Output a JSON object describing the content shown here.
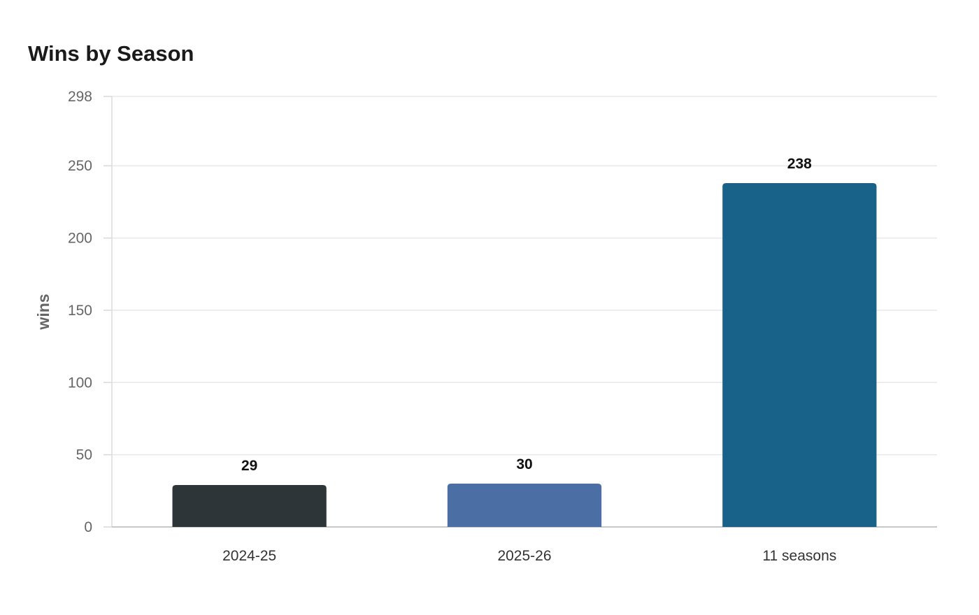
{
  "chart_data": {
    "type": "bar",
    "title": "Wins by Season",
    "xlabel": "",
    "ylabel": "wins",
    "categories": [
      "2024-25",
      "2025-26",
      "11 seasons"
    ],
    "values": [
      29,
      30,
      238
    ],
    "value_labels": [
      "29",
      "30",
      "238"
    ],
    "colors": [
      "#2e3538",
      "#4b6ea4",
      "#186189"
    ],
    "ylim": [
      0,
      298
    ],
    "yticks": [
      0,
      50,
      100,
      150,
      200,
      250,
      298
    ],
    "ytick_labels": [
      "0",
      "50",
      "100",
      "150",
      "200",
      "250",
      "298"
    ],
    "grid": true,
    "legend": "none"
  }
}
